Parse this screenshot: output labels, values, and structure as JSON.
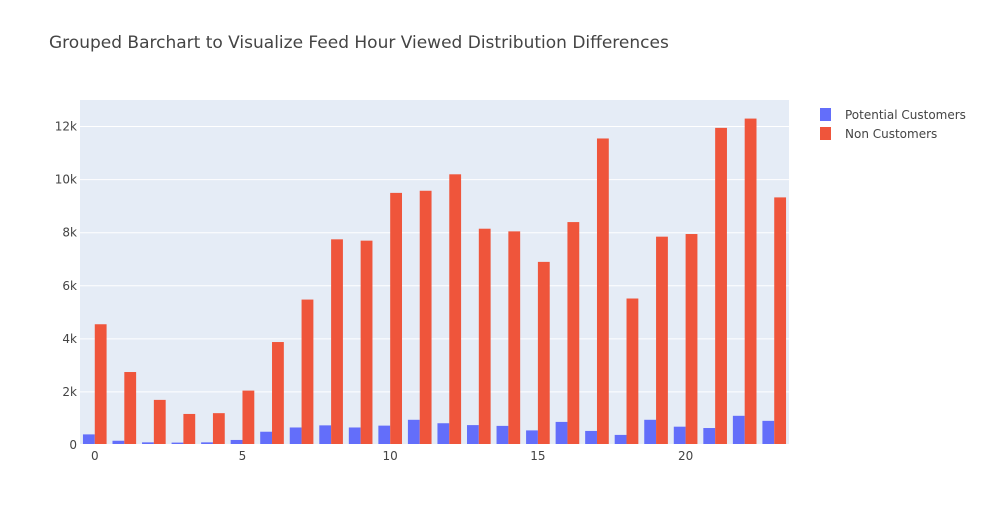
{
  "chart_data": {
    "type": "bar",
    "title": "Grouped Barchart to Visualize Feed Hour Viewed Distribution Differences",
    "xlabel": "",
    "ylabel": "",
    "x": [
      0,
      1,
      2,
      3,
      4,
      5,
      6,
      7,
      8,
      9,
      10,
      11,
      12,
      13,
      14,
      15,
      16,
      17,
      18,
      19,
      20,
      21,
      22,
      23
    ],
    "xticks": [
      0,
      5,
      10,
      15,
      20
    ],
    "xtick_labels": [
      "0",
      "5",
      "10",
      "15",
      "20"
    ],
    "ylim": [
      0,
      13000
    ],
    "yticks": [
      0,
      2000,
      4000,
      6000,
      8000,
      10000,
      12000
    ],
    "ytick_labels": [
      "0",
      "2k",
      "4k",
      "6k",
      "8k",
      "10k",
      "12k"
    ],
    "grid": true,
    "legend_position": "top-right",
    "series": [
      {
        "name": "Potential Customers",
        "color": "#636efa",
        "values": [
          400,
          160,
          100,
          90,
          100,
          190,
          500,
          660,
          740,
          660,
          730,
          950,
          820,
          750,
          720,
          550,
          870,
          530,
          380,
          950,
          690,
          640,
          1100,
          910
        ]
      },
      {
        "name": "Non Customers",
        "color": "#ef553b",
        "values": [
          4550,
          2750,
          1700,
          1170,
          1200,
          2050,
          3880,
          5480,
          7750,
          7700,
          9500,
          9580,
          10200,
          8150,
          8050,
          6900,
          8400,
          11550,
          5520,
          7850,
          7950,
          11950,
          12300,
          9330
        ]
      }
    ],
    "plot_bg": "#e5ecf6",
    "grid_color": "#ffffff"
  }
}
